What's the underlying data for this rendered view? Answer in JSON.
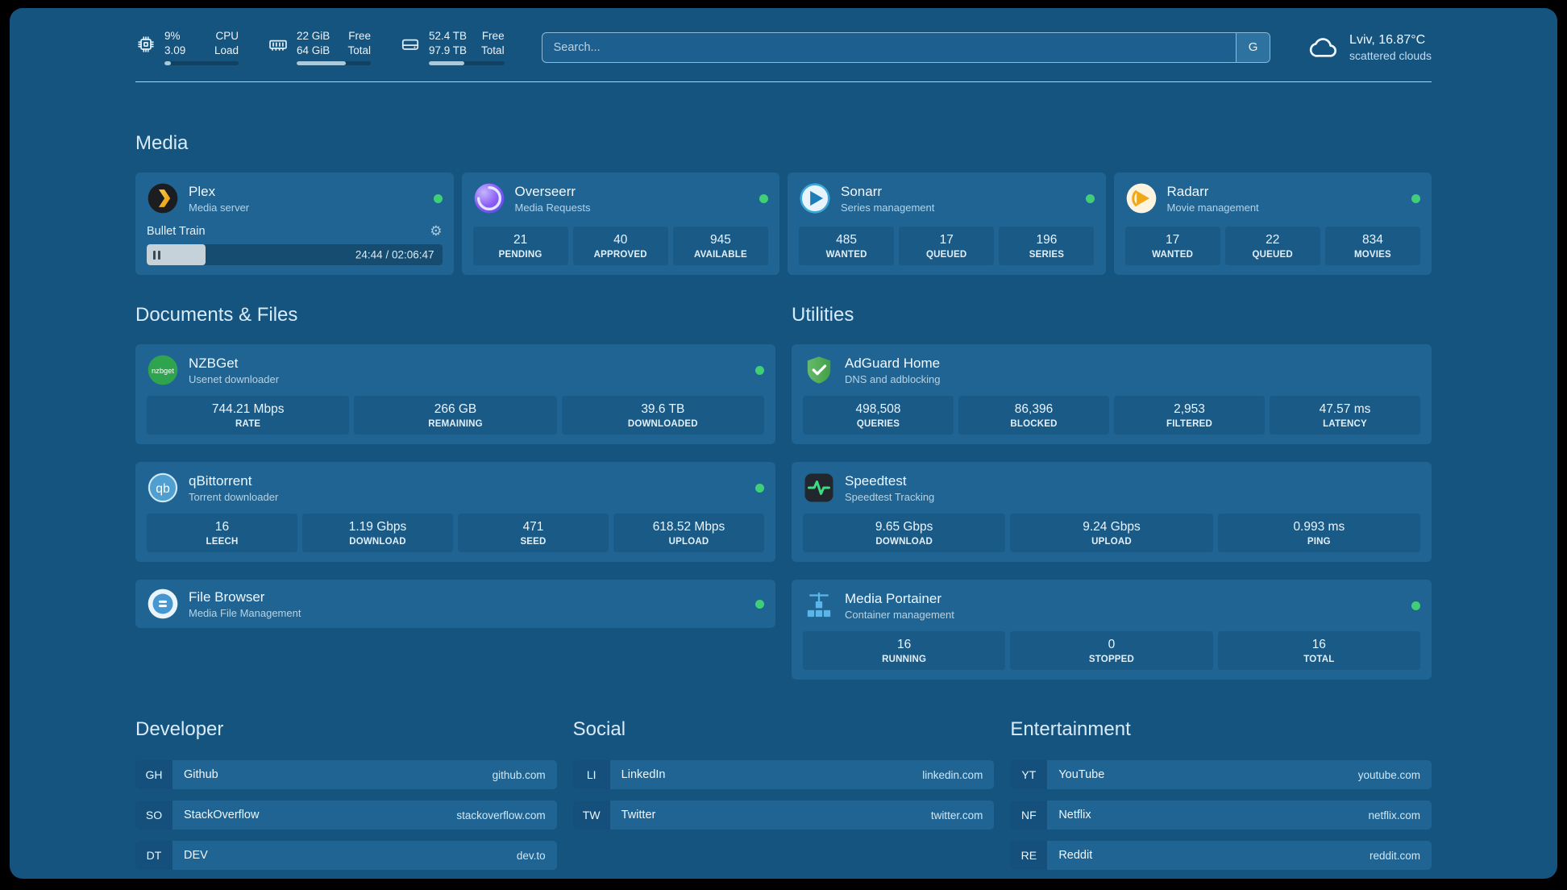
{
  "colors": {
    "status_online": "#3fcf77",
    "page_bg": "#165480",
    "card_bg": "#1f6492",
    "tile_bg": "#1a5a87"
  },
  "topbar": {
    "cpu": {
      "value_top": "9%",
      "value_bottom": "3.09",
      "label_top": "CPU",
      "label_bottom": "Load",
      "percent": 9
    },
    "memory": {
      "value_top": "22 GiB",
      "value_bottom": "64 GiB",
      "label_top": "Free",
      "label_bottom": "Total",
      "percent": 66
    },
    "disk": {
      "value_top": "52.4 TB",
      "value_bottom": "97.9 TB",
      "label_top": "Free",
      "label_bottom": "Total",
      "percent": 47
    },
    "search": {
      "placeholder": "Search...",
      "provider_label": "G"
    },
    "weather": {
      "location": "Lviv, 16.87°C",
      "condition": "scattered clouds"
    }
  },
  "sections": {
    "media": {
      "title": "Media",
      "plex": {
        "name": "Plex",
        "desc": "Media server",
        "now_playing": "Bullet Train",
        "time": "24:44 / 02:06:47",
        "progress": 20
      },
      "overseerr": {
        "name": "Overseerr",
        "desc": "Media Requests",
        "stats": [
          {
            "value": "21",
            "label": "PENDING"
          },
          {
            "value": "40",
            "label": "APPROVED"
          },
          {
            "value": "945",
            "label": "AVAILABLE"
          }
        ]
      },
      "sonarr": {
        "name": "Sonarr",
        "desc": "Series management",
        "stats": [
          {
            "value": "485",
            "label": "WANTED"
          },
          {
            "value": "17",
            "label": "QUEUED"
          },
          {
            "value": "196",
            "label": "SERIES"
          }
        ]
      },
      "radarr": {
        "name": "Radarr",
        "desc": "Movie management",
        "stats": [
          {
            "value": "17",
            "label": "WANTED"
          },
          {
            "value": "22",
            "label": "QUEUED"
          },
          {
            "value": "834",
            "label": "MOVIES"
          }
        ]
      }
    },
    "documents": {
      "title": "Documents & Files",
      "nzbget": {
        "name": "NZBGet",
        "desc": "Usenet downloader",
        "icon_text": "nzbget",
        "stats": [
          {
            "value": "744.21 Mbps",
            "label": "RATE"
          },
          {
            "value": "266 GB",
            "label": "REMAINING"
          },
          {
            "value": "39.6 TB",
            "label": "DOWNLOADED"
          }
        ]
      },
      "qbittorrent": {
        "name": "qBittorrent",
        "desc": "Torrent downloader",
        "icon_text": "qb",
        "stats": [
          {
            "value": "16",
            "label": "LEECH"
          },
          {
            "value": "1.19 Gbps",
            "label": "DOWNLOAD"
          },
          {
            "value": "471",
            "label": "SEED"
          },
          {
            "value": "618.52 Mbps",
            "label": "UPLOAD"
          }
        ]
      },
      "filebrowser": {
        "name": "File Browser",
        "desc": "Media File Management"
      }
    },
    "utilities": {
      "title": "Utilities",
      "adguard": {
        "name": "AdGuard Home",
        "desc": "DNS and adblocking",
        "stats": [
          {
            "value": "498,508",
            "label": "QUERIES"
          },
          {
            "value": "86,396",
            "label": "BLOCKED"
          },
          {
            "value": "2,953",
            "label": "FILTERED"
          },
          {
            "value": "47.57 ms",
            "label": "LATENCY"
          }
        ]
      },
      "speedtest": {
        "name": "Speedtest",
        "desc": "Speedtest Tracking",
        "stats": [
          {
            "value": "9.65 Gbps",
            "label": "DOWNLOAD"
          },
          {
            "value": "9.24 Gbps",
            "label": "UPLOAD"
          },
          {
            "value": "0.993 ms",
            "label": "PING"
          }
        ]
      },
      "portainer": {
        "name": "Media Portainer",
        "desc": "Container management",
        "stats": [
          {
            "value": "16",
            "label": "RUNNING"
          },
          {
            "value": "0",
            "label": "STOPPED"
          },
          {
            "value": "16",
            "label": "TOTAL"
          }
        ]
      }
    }
  },
  "bookmarks": {
    "developer": {
      "title": "Developer",
      "items": [
        {
          "abbr": "GH",
          "name": "Github",
          "url": "github.com"
        },
        {
          "abbr": "SO",
          "name": "StackOverflow",
          "url": "stackoverflow.com"
        },
        {
          "abbr": "DT",
          "name": "DEV",
          "url": "dev.to"
        }
      ]
    },
    "social": {
      "title": "Social",
      "items": [
        {
          "abbr": "LI",
          "name": "LinkedIn",
          "url": "linkedin.com"
        },
        {
          "abbr": "TW",
          "name": "Twitter",
          "url": "twitter.com"
        }
      ]
    },
    "entertainment": {
      "title": "Entertainment",
      "items": [
        {
          "abbr": "YT",
          "name": "YouTube",
          "url": "youtube.com"
        },
        {
          "abbr": "NF",
          "name": "Netflix",
          "url": "netflix.com"
        },
        {
          "abbr": "RE",
          "name": "Reddit",
          "url": "reddit.com"
        }
      ]
    }
  }
}
